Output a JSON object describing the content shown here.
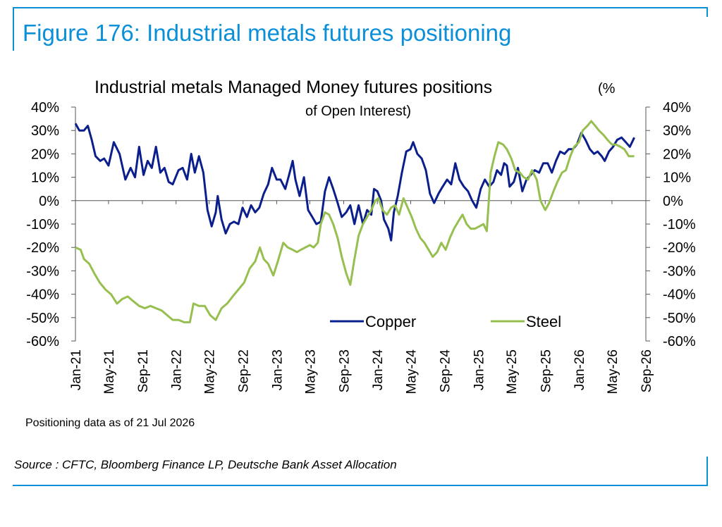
{
  "figure_title": "Figure 176: Industrial metals futures positioning",
  "note": "Positioning data as of 21 Jul 2026",
  "source": "Source : CFTC, Bloomberg Finance LP, Deutsche Bank Asset Allocation",
  "chart_data": {
    "type": "line",
    "title": "Industrial metals Managed Money futures positions",
    "subtitle_a": "(%",
    "subtitle_b": "of Open Interest)",
    "xlabel": "",
    "ylabel": "",
    "x_range": [
      "2021-01",
      "2026-09"
    ],
    "x_ticks": [
      "Jan-21",
      "May-21",
      "Sep-21",
      "Jan-22",
      "May-22",
      "Sep-22",
      "Jan-23",
      "May-23",
      "Sep-23",
      "Jan-24",
      "May-24",
      "Sep-24",
      "Jan-25",
      "May-25",
      "Sep-25",
      "Jan-26",
      "May-26",
      "Sep-26"
    ],
    "y_ticks": [
      "-60%",
      "-50%",
      "-40%",
      "-30%",
      "-20%",
      "-10%",
      "0%",
      "10%",
      "20%",
      "30%",
      "40%"
    ],
    "y_tick_values": [
      -60,
      -50,
      -40,
      -30,
      -20,
      -10,
      0,
      10,
      20,
      30,
      40
    ],
    "ylim": [
      -60,
      40
    ],
    "secondary_ylim": [
      -60,
      40
    ],
    "grid": false,
    "legend_position": "bottom-right",
    "series": [
      {
        "name": "Copper",
        "color": "#0b1f8c",
        "points": [
          [
            "2021-01-01",
            33
          ],
          [
            "2021-01-15",
            30
          ],
          [
            "2021-02-01",
            30
          ],
          [
            "2021-02-15",
            32
          ],
          [
            "2021-03-01",
            26
          ],
          [
            "2021-03-15",
            19
          ],
          [
            "2021-04-01",
            17
          ],
          [
            "2021-04-15",
            18
          ],
          [
            "2021-05-01",
            15
          ],
          [
            "2021-05-20",
            25
          ],
          [
            "2021-06-10",
            20
          ],
          [
            "2021-07-01",
            9
          ],
          [
            "2021-07-20",
            14
          ],
          [
            "2021-08-05",
            10
          ],
          [
            "2021-08-20",
            23
          ],
          [
            "2021-09-05",
            11
          ],
          [
            "2021-09-20",
            17
          ],
          [
            "2021-10-05",
            14
          ],
          [
            "2021-10-20",
            23
          ],
          [
            "2021-11-05",
            12
          ],
          [
            "2021-11-20",
            14
          ],
          [
            "2021-12-05",
            8
          ],
          [
            "2021-12-20",
            7
          ],
          [
            "2022-01-10",
            13
          ],
          [
            "2022-01-25",
            14
          ],
          [
            "2022-02-10",
            9
          ],
          [
            "2022-02-25",
            20
          ],
          [
            "2022-03-10",
            12
          ],
          [
            "2022-03-25",
            19
          ],
          [
            "2022-04-10",
            12
          ],
          [
            "2022-04-25",
            -4
          ],
          [
            "2022-05-10",
            -11
          ],
          [
            "2022-05-25",
            -5
          ],
          [
            "2022-06-01",
            2
          ],
          [
            "2022-06-15",
            -8
          ],
          [
            "2022-06-30",
            -14
          ],
          [
            "2022-07-15",
            -10
          ],
          [
            "2022-07-30",
            -9
          ],
          [
            "2022-08-15",
            -10
          ],
          [
            "2022-08-30",
            -3
          ],
          [
            "2022-09-15",
            -7
          ],
          [
            "2022-09-30",
            -2
          ],
          [
            "2022-10-15",
            -5
          ],
          [
            "2022-10-30",
            -3
          ],
          [
            "2022-11-15",
            3
          ],
          [
            "2022-12-01",
            7
          ],
          [
            "2022-12-15",
            14
          ],
          [
            "2023-01-01",
            9
          ],
          [
            "2023-01-15",
            9
          ],
          [
            "2023-02-01",
            5
          ],
          [
            "2023-02-15",
            11
          ],
          [
            "2023-02-28",
            17
          ],
          [
            "2023-03-10",
            9
          ],
          [
            "2023-03-25",
            2
          ],
          [
            "2023-04-10",
            10
          ],
          [
            "2023-04-25",
            -4
          ],
          [
            "2023-05-10",
            -7
          ],
          [
            "2023-05-25",
            -10
          ],
          [
            "2023-06-10",
            -9
          ],
          [
            "2023-06-25",
            4
          ],
          [
            "2023-07-10",
            10
          ],
          [
            "2023-07-25",
            5
          ],
          [
            "2023-08-10",
            -1
          ],
          [
            "2023-08-25",
            -7
          ],
          [
            "2023-09-10",
            -5
          ],
          [
            "2023-09-25",
            -2
          ],
          [
            "2023-10-10",
            -10
          ],
          [
            "2023-10-25",
            -2
          ],
          [
            "2023-11-10",
            -10
          ],
          [
            "2023-11-25",
            -4
          ],
          [
            "2023-12-10",
            -6
          ],
          [
            "2023-12-20",
            5
          ],
          [
            "2024-01-01",
            4
          ],
          [
            "2024-01-15",
            0
          ],
          [
            "2024-01-25",
            -8
          ],
          [
            "2024-02-10",
            -12
          ],
          [
            "2024-02-20",
            -17
          ],
          [
            "2024-03-01",
            -5
          ],
          [
            "2024-03-15",
            2
          ],
          [
            "2024-03-30",
            12
          ],
          [
            "2024-04-15",
            21
          ],
          [
            "2024-04-30",
            22
          ],
          [
            "2024-05-10",
            25
          ],
          [
            "2024-05-25",
            20
          ],
          [
            "2024-06-10",
            18
          ],
          [
            "2024-06-25",
            13
          ],
          [
            "2024-07-10",
            3
          ],
          [
            "2024-07-25",
            -1
          ],
          [
            "2024-08-10",
            3
          ],
          [
            "2024-08-25",
            6
          ],
          [
            "2024-09-10",
            9
          ],
          [
            "2024-09-25",
            7
          ],
          [
            "2024-10-10",
            16
          ],
          [
            "2024-10-25",
            9
          ],
          [
            "2024-11-10",
            6
          ],
          [
            "2024-11-25",
            4
          ],
          [
            "2024-12-10",
            0
          ],
          [
            "2024-12-25",
            -3
          ],
          [
            "2025-01-10",
            5
          ],
          [
            "2025-01-25",
            9
          ],
          [
            "2025-02-10",
            6
          ],
          [
            "2025-02-25",
            8
          ],
          [
            "2025-03-10",
            13
          ],
          [
            "2025-03-25",
            11
          ],
          [
            "2025-04-05",
            16
          ],
          [
            "2025-04-15",
            15
          ],
          [
            "2025-04-25",
            6
          ],
          [
            "2025-05-10",
            8
          ],
          [
            "2025-05-25",
            14
          ],
          [
            "2025-06-10",
            4
          ],
          [
            "2025-06-25",
            9
          ],
          [
            "2025-07-10",
            11
          ],
          [
            "2025-07-25",
            13
          ],
          [
            "2025-08-10",
            12
          ],
          [
            "2025-08-25",
            16
          ],
          [
            "2025-09-10",
            16
          ],
          [
            "2025-09-25",
            12
          ],
          [
            "2025-10-10",
            17
          ],
          [
            "2025-10-25",
            21
          ],
          [
            "2025-11-10",
            20
          ],
          [
            "2025-11-25",
            22
          ],
          [
            "2025-12-10",
            22
          ],
          [
            "2025-12-25",
            24
          ],
          [
            "2026-01-10",
            29
          ],
          [
            "2026-01-25",
            26
          ],
          [
            "2026-02-10",
            22
          ],
          [
            "2026-02-25",
            20
          ],
          [
            "2026-03-10",
            21
          ],
          [
            "2026-03-25",
            19
          ],
          [
            "2026-04-05",
            17
          ],
          [
            "2026-04-20",
            21
          ],
          [
            "2026-05-05",
            23
          ],
          [
            "2026-05-20",
            26
          ],
          [
            "2026-06-05",
            27
          ],
          [
            "2026-06-20",
            25
          ],
          [
            "2026-07-05",
            23
          ],
          [
            "2026-07-21",
            27
          ]
        ]
      },
      {
        "name": "Steel",
        "color": "#97bf50",
        "points": [
          [
            "2021-01-01",
            -20
          ],
          [
            "2021-01-20",
            -21
          ],
          [
            "2021-02-01",
            -25
          ],
          [
            "2021-02-20",
            -27
          ],
          [
            "2021-03-10",
            -31
          ],
          [
            "2021-03-30",
            -35
          ],
          [
            "2021-04-20",
            -38
          ],
          [
            "2021-05-10",
            -40
          ],
          [
            "2021-06-01",
            -44
          ],
          [
            "2021-06-20",
            -42
          ],
          [
            "2021-07-10",
            -41
          ],
          [
            "2021-07-30",
            -43
          ],
          [
            "2021-08-20",
            -45
          ],
          [
            "2021-09-10",
            -46
          ],
          [
            "2021-09-30",
            -45
          ],
          [
            "2021-10-20",
            -46
          ],
          [
            "2021-11-10",
            -47
          ],
          [
            "2021-11-30",
            -49
          ],
          [
            "2021-12-20",
            -51
          ],
          [
            "2022-01-10",
            -51
          ],
          [
            "2022-01-30",
            -52
          ],
          [
            "2022-02-20",
            -52
          ],
          [
            "2022-03-05",
            -44
          ],
          [
            "2022-03-25",
            -45
          ],
          [
            "2022-04-15",
            -45
          ],
          [
            "2022-05-05",
            -49
          ],
          [
            "2022-05-25",
            -51
          ],
          [
            "2022-06-15",
            -46
          ],
          [
            "2022-07-05",
            -44
          ],
          [
            "2022-07-25",
            -41
          ],
          [
            "2022-08-15",
            -38
          ],
          [
            "2022-09-05",
            -35
          ],
          [
            "2022-09-25",
            -29
          ],
          [
            "2022-10-15",
            -26
          ],
          [
            "2022-11-01",
            -20
          ],
          [
            "2022-11-15",
            -25
          ],
          [
            "2022-12-01",
            -27
          ],
          [
            "2022-12-20",
            -32
          ],
          [
            "2023-01-05",
            -26
          ],
          [
            "2023-01-25",
            -18
          ],
          [
            "2023-02-10",
            -20
          ],
          [
            "2023-02-28",
            -21
          ],
          [
            "2023-03-15",
            -22
          ],
          [
            "2023-03-30",
            -21
          ],
          [
            "2023-04-15",
            -20
          ],
          [
            "2023-05-01",
            -19
          ],
          [
            "2023-05-15",
            -20
          ],
          [
            "2023-05-30",
            -18
          ],
          [
            "2023-06-10",
            -10
          ],
          [
            "2023-06-25",
            -5
          ],
          [
            "2023-07-10",
            -6
          ],
          [
            "2023-07-25",
            -10
          ],
          [
            "2023-08-10",
            -16
          ],
          [
            "2023-08-25",
            -24
          ],
          [
            "2023-09-10",
            -31
          ],
          [
            "2023-09-25",
            -36
          ],
          [
            "2023-10-10",
            -25
          ],
          [
            "2023-10-25",
            -15
          ],
          [
            "2023-11-10",
            -10
          ],
          [
            "2023-11-25",
            -7
          ],
          [
            "2023-12-10",
            -4
          ],
          [
            "2023-12-25",
            0
          ],
          [
            "2024-01-05",
            1
          ],
          [
            "2024-01-20",
            -4
          ],
          [
            "2024-02-05",
            -6
          ],
          [
            "2024-02-20",
            -3
          ],
          [
            "2024-03-05",
            -2
          ],
          [
            "2024-03-20",
            -6
          ],
          [
            "2024-04-05",
            1
          ],
          [
            "2024-04-20",
            -3
          ],
          [
            "2024-05-05",
            -7
          ],
          [
            "2024-05-20",
            -12
          ],
          [
            "2024-06-05",
            -16
          ],
          [
            "2024-06-20",
            -18
          ],
          [
            "2024-07-05",
            -21
          ],
          [
            "2024-07-20",
            -24
          ],
          [
            "2024-08-05",
            -22
          ],
          [
            "2024-08-20",
            -18
          ],
          [
            "2024-09-05",
            -21
          ],
          [
            "2024-09-20",
            -16
          ],
          [
            "2024-10-05",
            -12
          ],
          [
            "2024-10-20",
            -9
          ],
          [
            "2024-11-05",
            -6
          ],
          [
            "2024-11-20",
            -10
          ],
          [
            "2024-12-05",
            -12
          ],
          [
            "2024-12-20",
            -12
          ],
          [
            "2025-01-05",
            -11
          ],
          [
            "2025-01-20",
            -10
          ],
          [
            "2025-02-01",
            -13
          ],
          [
            "2025-02-15",
            12
          ],
          [
            "2025-03-01",
            19
          ],
          [
            "2025-03-15",
            25
          ],
          [
            "2025-04-01",
            24
          ],
          [
            "2025-04-15",
            22
          ],
          [
            "2025-05-01",
            18
          ],
          [
            "2025-05-15",
            13
          ],
          [
            "2025-06-01",
            12
          ],
          [
            "2025-06-15",
            10
          ],
          [
            "2025-07-01",
            9
          ],
          [
            "2025-07-15",
            13
          ],
          [
            "2025-08-01",
            9
          ],
          [
            "2025-08-15",
            0
          ],
          [
            "2025-09-01",
            -4
          ],
          [
            "2025-09-15",
            -1
          ],
          [
            "2025-10-01",
            4
          ],
          [
            "2025-10-15",
            8
          ],
          [
            "2025-11-01",
            12
          ],
          [
            "2025-11-15",
            13
          ],
          [
            "2025-12-01",
            19
          ],
          [
            "2025-12-15",
            23
          ],
          [
            "2026-01-01",
            25
          ],
          [
            "2026-01-15",
            30
          ],
          [
            "2026-02-01",
            32
          ],
          [
            "2026-02-15",
            34
          ],
          [
            "2026-03-01",
            32
          ],
          [
            "2026-03-15",
            30
          ],
          [
            "2026-04-01",
            28
          ],
          [
            "2026-04-15",
            26
          ],
          [
            "2026-05-01",
            24
          ],
          [
            "2026-05-15",
            24
          ],
          [
            "2026-06-01",
            23
          ],
          [
            "2026-06-15",
            22
          ],
          [
            "2026-07-01",
            19
          ],
          [
            "2026-07-21",
            19
          ]
        ]
      }
    ]
  }
}
